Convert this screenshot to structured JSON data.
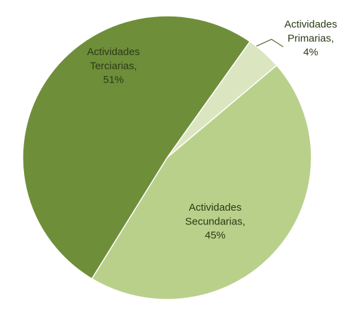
{
  "chart_data": {
    "type": "pie",
    "slices": [
      {
        "label": "Actividades\nPrimarias,\n4%",
        "value": 4,
        "color": "#dbe6c0"
      },
      {
        "label": "Actividades\nSecundarias,\n45%",
        "value": 45,
        "color": "#b9d08a"
      },
      {
        "label": "Actividades\nTerciarias,\n51%",
        "value": 51,
        "color": "#6f8e3a"
      }
    ],
    "labels_inside": true,
    "leader_line_for_small_slice": true
  }
}
